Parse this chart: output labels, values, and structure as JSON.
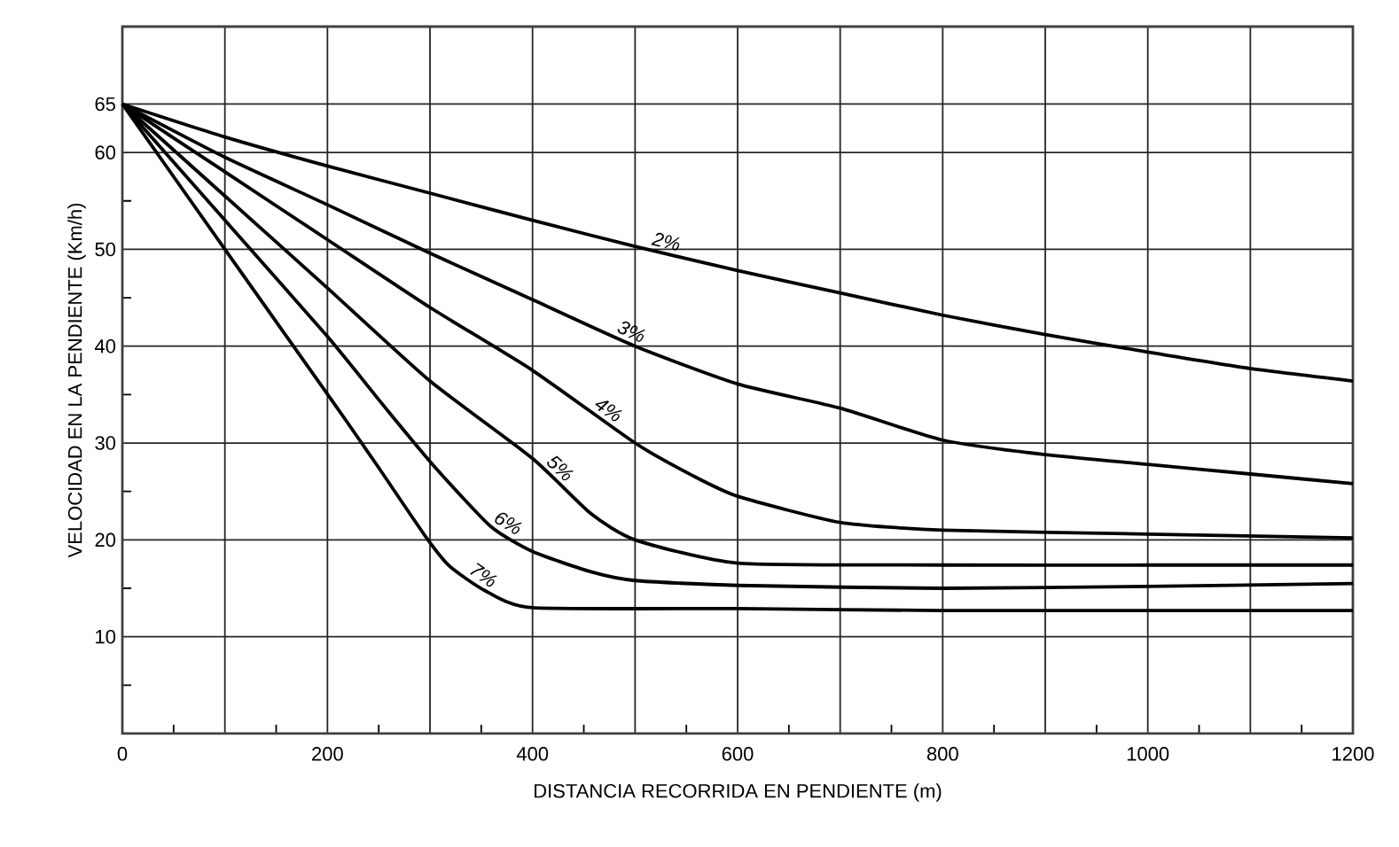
{
  "chart_data": {
    "type": "line",
    "xlabel": "DISTANCIA RECORRIDA EN PENDIENTE (m)",
    "ylabel": "VELOCIDAD EN LA PENDIENTE (Km/h)",
    "xlim": [
      0,
      1200
    ],
    "ylim": [
      0,
      73
    ],
    "xticks": [
      0,
      {
        "value": 100,
        "label": null
      },
      200,
      {
        "value": 300,
        "label": null
      },
      400,
      {
        "value": 500,
        "label": null
      },
      600,
      {
        "value": 700,
        "label": null
      },
      800,
      {
        "value": 900,
        "label": null
      },
      1000,
      {
        "value": 1100,
        "label": null
      },
      1200
    ],
    "yticks": [
      10,
      20,
      30,
      40,
      50,
      60,
      65
    ],
    "grid": true,
    "marker": "none",
    "line_style": "solid",
    "series": [
      {
        "color": "#000000",
        "x": [
          0,
          100,
          200,
          300,
          400,
          500,
          600,
          700,
          800,
          900,
          1000,
          1100,
          1200
        ],
        "values": [
          65,
          61.6,
          58.6,
          55.8,
          53.0,
          50.3,
          47.8,
          45.5,
          43.2,
          41.2,
          39.4,
          37.7,
          36.4
        ]
      },
      {
        "color": "#000000",
        "x": [
          0,
          100,
          200,
          300,
          400,
          500,
          600,
          700,
          800,
          900,
          1000,
          1100,
          1200
        ],
        "values": [
          65,
          59.5,
          54.6,
          49.6,
          44.8,
          40,
          36.1,
          33.6,
          30.3,
          28.8,
          27.8,
          26.8,
          25.8
        ]
      },
      {
        "color": "#000000",
        "x": [
          0,
          100,
          200,
          300,
          400,
          500,
          555,
          600,
          700,
          800,
          1000,
          1200
        ],
        "values": [
          65,
          58,
          51,
          44,
          37.5,
          30,
          26.7,
          24.5,
          21.8,
          21.0,
          20.6,
          20.2
        ]
      },
      {
        "color": "#000000",
        "x": [
          0,
          100,
          200,
          300,
          400,
          457,
          500,
          600,
          800,
          1000,
          1200
        ],
        "values": [
          65,
          55.5,
          46,
          36.4,
          28.4,
          22.7,
          20,
          17.6,
          17.4,
          17.4,
          17.4
        ]
      },
      {
        "color": "#000000",
        "x": [
          0,
          100,
          200,
          256,
          304,
          359,
          400,
          457,
          500,
          600,
          800,
          1000,
          1200
        ],
        "values": [
          65,
          53,
          41,
          33.7,
          27.6,
          21.4,
          18.8,
          16.7,
          15.8,
          15.3,
          15.0,
          15.2,
          15.5
        ]
      },
      {
        "color": "#000000",
        "x": [
          0,
          100,
          209,
          249,
          296,
          319,
          353,
          400,
          600,
          800,
          1000,
          1200
        ],
        "values": [
          65,
          50,
          33.7,
          27.6,
          20.3,
          17.3,
          14.8,
          13.0,
          12.9,
          12.7,
          12.7,
          12.7
        ]
      }
    ],
    "annotations": [
      "2%",
      "3%",
      "4%",
      "5%",
      "6%",
      "7%"
    ]
  }
}
